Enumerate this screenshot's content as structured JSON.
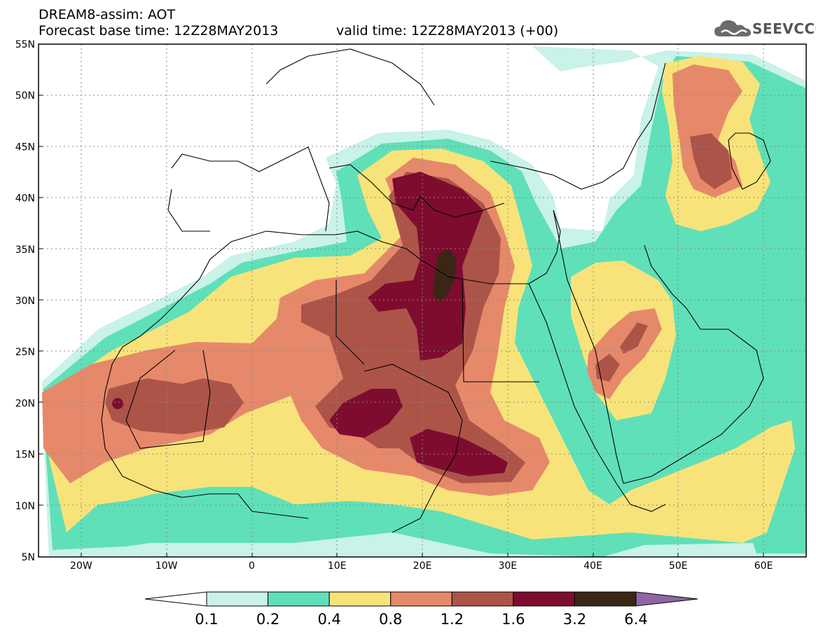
{
  "header": {
    "model_title": "DREAM8-assim: AOT",
    "forecast_base": "Forecast base time: 12Z28MAY2013",
    "valid_time": "valid time: 12Z28MAY2013 (+00)",
    "logo_text": "SEEVCCC"
  },
  "map": {
    "projection": "lat-lon",
    "lon_range": [
      -25,
      65
    ],
    "lat_range": [
      5,
      55
    ],
    "lon_ticks": [
      "20W",
      "10W",
      "0",
      "10E",
      "20E",
      "30E",
      "40E",
      "50E",
      "60E"
    ],
    "lat_ticks": [
      "55N",
      "50N",
      "45N",
      "40N",
      "35N",
      "30N",
      "25N",
      "20N",
      "15N",
      "10N",
      "5N"
    ],
    "colors": {
      "background": "#ffffff",
      "c01": "#c9f2e9",
      "c02": "#5fe0b8",
      "c04": "#f8e37a",
      "c08": "#e6896a",
      "c12": "#ad5449",
      "c16": "#7e0c2f",
      "c32": "#3b2616",
      "c64": "#8f66a4",
      "coast": "#000000",
      "grid": "#888888"
    }
  },
  "colorbar": {
    "labels": [
      "0.1",
      "0.2",
      "0.4",
      "0.8",
      "1.2",
      "1.6",
      "3.2",
      "6.4"
    ],
    "colors": [
      "#c9f2e9",
      "#5fe0b8",
      "#f8e37a",
      "#e6896a",
      "#ad5449",
      "#7e0c2f",
      "#3b2616"
    ],
    "under_color": "#ffffff",
    "over_color": "#8f66a4"
  }
}
